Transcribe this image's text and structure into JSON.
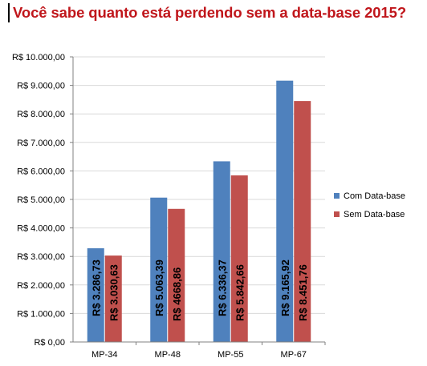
{
  "title": "Você sabe quanto está perdendo sem a data-base 2015?",
  "colors": {
    "title": "#c0161b",
    "series_com": "#4f81bd",
    "series_sem": "#c0504d",
    "grid": "#d9d9d9",
    "axis": "#808080"
  },
  "chart_data": {
    "type": "bar",
    "categories": [
      "MP-34",
      "MP-48",
      "MP-55",
      "MP-67"
    ],
    "series": [
      {
        "name": "Com Data-base",
        "values": [
          3286.73,
          5063.39,
          6336.37,
          9165.92
        ],
        "labels": [
          "R$ 3.286,73",
          "R$ 5.063,39",
          "R$ 6.336,37",
          "R$ 9.165,92"
        ],
        "color": "#4f81bd"
      },
      {
        "name": "Sem Data-base",
        "values": [
          3030.63,
          4668.86,
          5842.66,
          8451.76
        ],
        "labels": [
          "R$ 3.030,63",
          "R$ 4668,86",
          "R$ 5.842,66",
          "R$ 8.451,76"
        ],
        "color": "#c0504d"
      }
    ],
    "ylim": [
      0,
      10000
    ],
    "yticks": [
      {
        "value": 0,
        "label": "R$ 0,00"
      },
      {
        "value": 1000,
        "label": "R$ 1.000,00"
      },
      {
        "value": 2000,
        "label": "R$ 2.000,00"
      },
      {
        "value": 3000,
        "label": "R$ 3.000,00"
      },
      {
        "value": 4000,
        "label": "R$ 4.000,00"
      },
      {
        "value": 5000,
        "label": "R$ 5.000,00"
      },
      {
        "value": 6000,
        "label": "R$ 6.000,00"
      },
      {
        "value": 7000,
        "label": "R$ 7.000,00"
      },
      {
        "value": 8000,
        "label": "R$ 8.000,00"
      },
      {
        "value": 9000,
        "label": "R$ 9.000,00"
      },
      {
        "value": 10000,
        "label": "R$ 10.000,00"
      }
    ],
    "grid": true,
    "legend_position": "right",
    "xlabel": "",
    "ylabel": ""
  }
}
